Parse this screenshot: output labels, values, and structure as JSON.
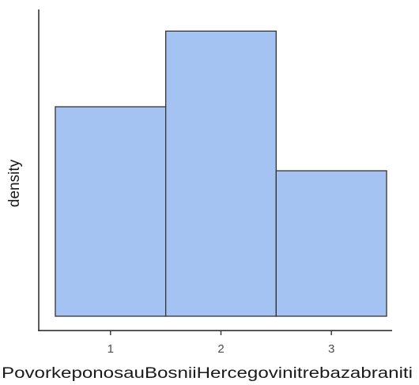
{
  "chart_data": {
    "type": "bar",
    "categories": [
      "1",
      "2",
      "3"
    ],
    "values": [
      0.36,
      0.49,
      0.25
    ],
    "title": "",
    "xlabel": "PovorkeponosauBosniiHercegovinitrebazabraniti",
    "ylabel": "density",
    "ylim": [
      0,
      0.5
    ],
    "xlim": [
      0.35,
      3.55
    ],
    "grid": false,
    "bar_color": "#a4c3f2",
    "edge_color": "#333333",
    "y_ticks_shown": false
  }
}
